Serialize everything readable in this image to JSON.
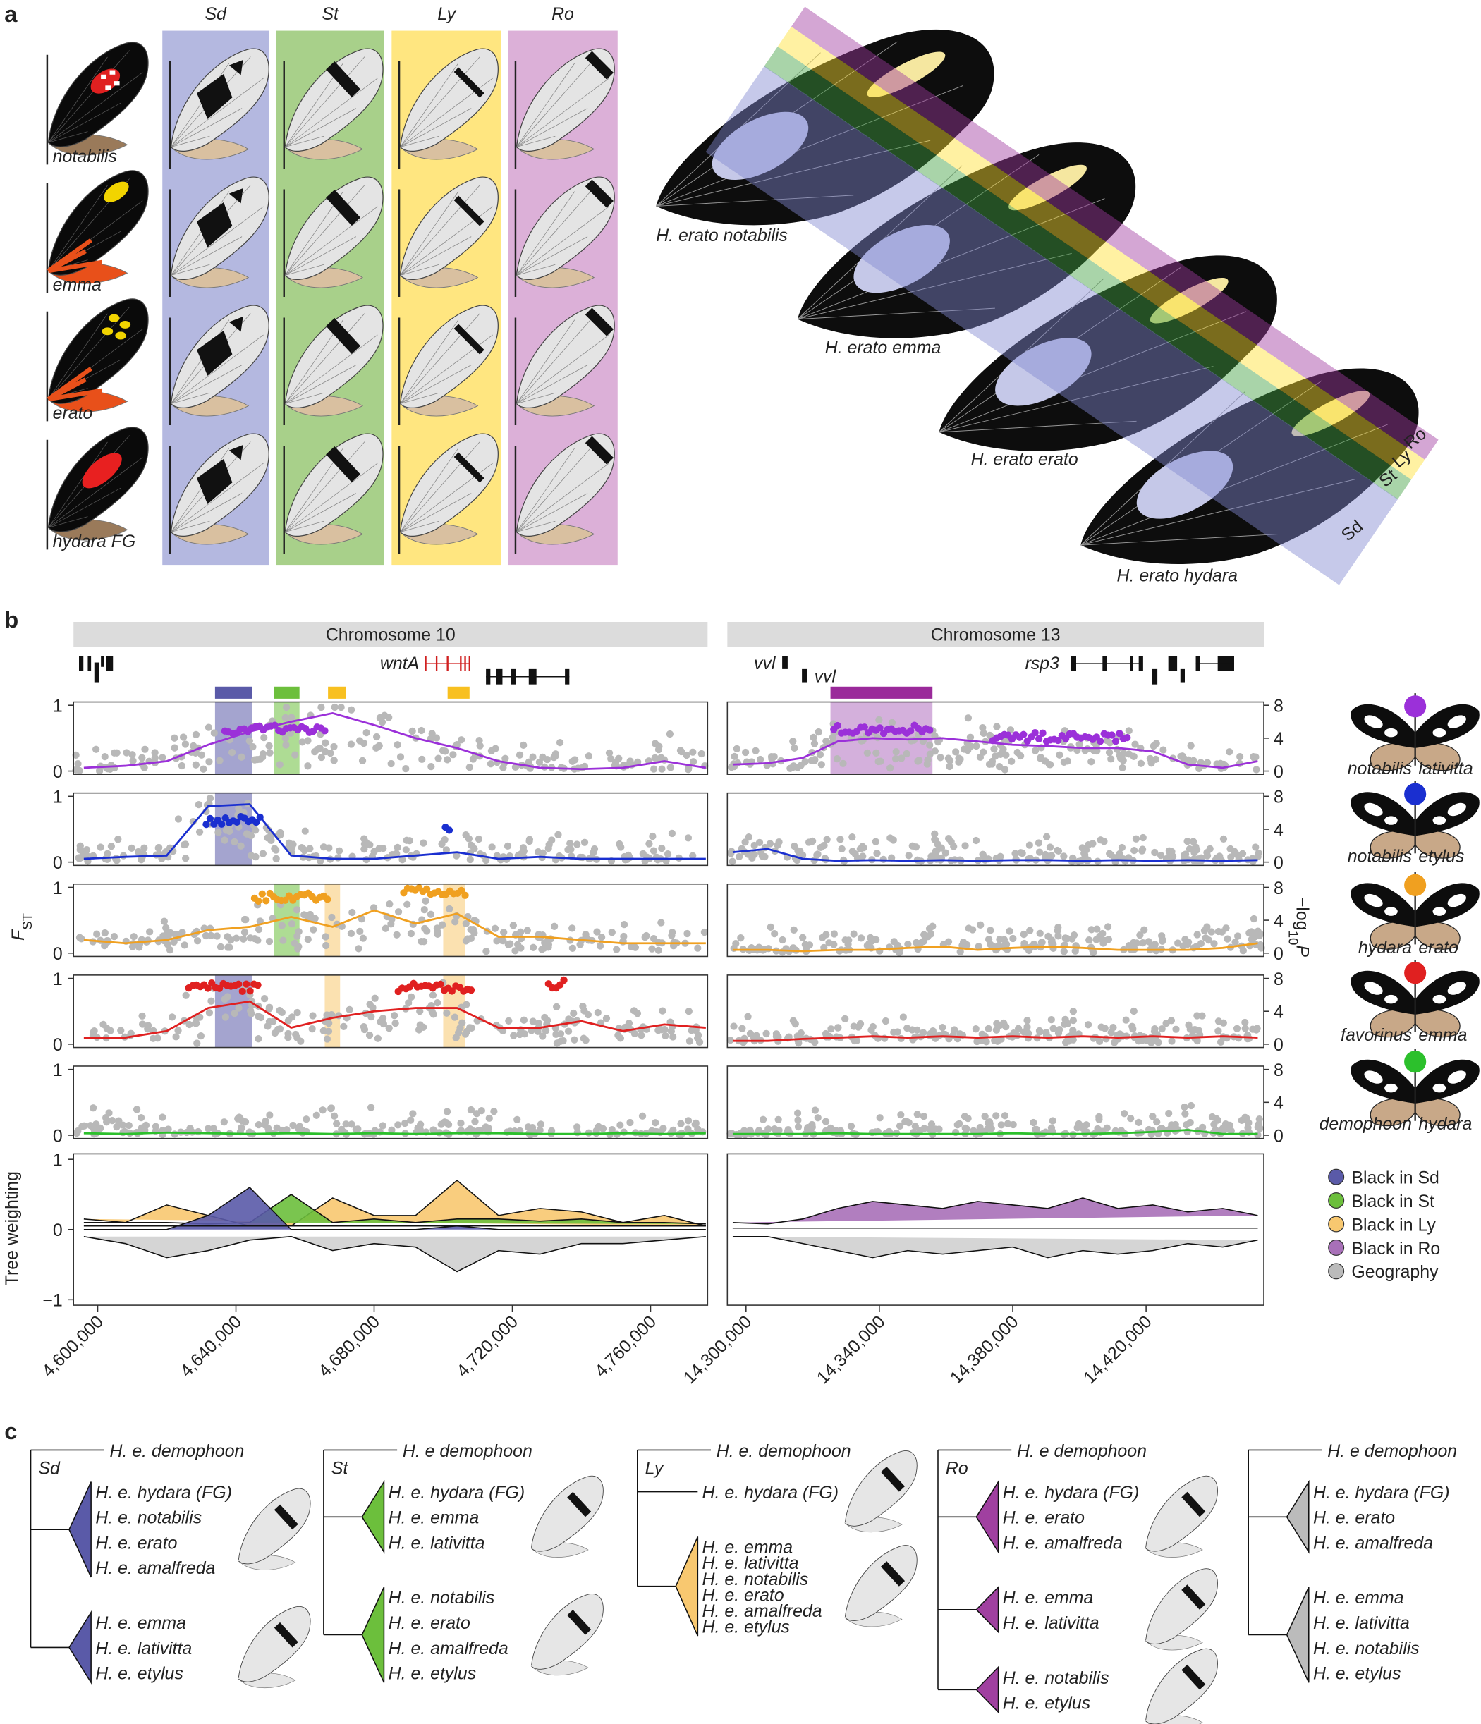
{
  "panel_labels": [
    "a",
    "b",
    "c"
  ],
  "panel_a": {
    "columns": [
      "Sd",
      "St",
      "Ly",
      "Ro"
    ],
    "rows": [
      "notabilis",
      "emma",
      "erato",
      "hydara FG"
    ],
    "stack_labels": [
      "H. erato notabilis",
      "H. erato emma",
      "H. erato erato",
      "H. erato hydara"
    ],
    "band_labels": [
      "Ro",
      "Ly",
      "St",
      "Sd"
    ]
  },
  "panel_b": {
    "genes": [
      "wntA",
      "vvl",
      "vvl",
      "rsp3"
    ],
    "fst_label": {
      "main": "F",
      "sub": "ST"
    },
    "p_label": {
      "minus_log": "−log",
      "sub": "10",
      "main": "P"
    },
    "tree_label": "Tree weighting",
    "comparisons": [
      {
        "left": "notabilis",
        "right": "lativitta"
      },
      {
        "left": "notabilis",
        "right": "etylus"
      },
      {
        "left": "hydara",
        "right": "erato"
      },
      {
        "left": "favorinus",
        "right": "emma"
      },
      {
        "left": "demophoon",
        "right": "hydara"
      }
    ],
    "legend": [
      {
        "name": "Black in Sd",
        "color": "#5a5aa8"
      },
      {
        "name": "Black in St",
        "color": "#6cbf3c"
      },
      {
        "name": "Black in Ly",
        "color": "#f8c870"
      },
      {
        "name": "Black in Ro",
        "color": "#a870b8"
      },
      {
        "name": "Geography",
        "color": "#bbbbbb"
      }
    ]
  },
  "chart_data": [
    {
      "type": "line",
      "title": "Chromosome 10",
      "x": [
        4596000,
        4608000,
        4620000,
        4632000,
        4644000,
        4656000,
        4668000,
        4680000,
        4692000,
        4704000,
        4716000,
        4728000,
        4740000,
        4752000,
        4764000,
        4776000
      ],
      "xlim": [
        4593000,
        4776500
      ],
      "xticks": [
        {
          "value": 4600000,
          "label": "4,600,000"
        },
        {
          "value": 4640000,
          "label": "4,640,000"
        },
        {
          "value": 4680000,
          "label": "4,680,000"
        },
        {
          "value": 4720000,
          "label": "4,720,000"
        },
        {
          "value": 4760000,
          "label": "4,760,000"
        }
      ],
      "fst": {
        "ylim": [
          0,
          1
        ],
        "yticks": [
          0,
          1
        ],
        "series": [
          {
            "color": "#9b30d9",
            "values": [
              0.05,
              0.08,
              0.15,
              0.4,
              0.6,
              0.75,
              0.88,
              0.7,
              0.5,
              0.35,
              0.15,
              0.05,
              0.03,
              0.05,
              0.15,
              0.05
            ]
          },
          {
            "color": "#1a2fd0",
            "values": [
              0.05,
              0.08,
              0.1,
              0.85,
              0.88,
              0.1,
              0.05,
              0.05,
              0.1,
              0.15,
              0.05,
              0.08,
              0.05,
              0.05,
              0.05,
              0.05
            ]
          },
          {
            "color": "#f0a020",
            "values": [
              0.2,
              0.15,
              0.2,
              0.35,
              0.4,
              0.55,
              0.4,
              0.65,
              0.45,
              0.6,
              0.25,
              0.25,
              0.2,
              0.15,
              0.15,
              0.15
            ]
          },
          {
            "color": "#e02020",
            "values": [
              0.1,
              0.1,
              0.2,
              0.55,
              0.65,
              0.25,
              0.4,
              0.5,
              0.55,
              0.55,
              0.25,
              0.25,
              0.35,
              0.2,
              0.3,
              0.25
            ]
          },
          {
            "color": "#2cc02c",
            "values": [
              0.03,
              0.02,
              0.04,
              0.03,
              0.02,
              0.03,
              0.02,
              0.03,
              0.02,
              0.03,
              0.03,
              0.02,
              0.02,
              0.03,
              0.02,
              0.03
            ]
          }
        ]
      },
      "tree": {
        "ylim": [
          -1,
          1
        ],
        "yticks": [
          1,
          0,
          {
            "value": -1,
            "label": "−1"
          }
        ],
        "series": [
          {
            "color": "#f8c870",
            "values": [
              0.15,
              0.1,
              0.35,
              0.2,
              0.05,
              0.05,
              0.45,
              0.2,
              0.2,
              0.7,
              0.2,
              0.3,
              0.25,
              0.1,
              0.2,
              0.05
            ]
          },
          {
            "color": "#6cbf3c",
            "values": [
              0.1,
              0.1,
              0.1,
              0.08,
              0.1,
              0.5,
              0.1,
              0.15,
              0.1,
              0.15,
              0.15,
              0.12,
              0.15,
              0.1,
              0.1,
              0.08
            ]
          },
          {
            "color": "#5a5aa8",
            "values": [
              0,
              0,
              0,
              0.2,
              0.6,
              0,
              0,
              0,
              0,
              0.05,
              0,
              0,
              0,
              0,
              0,
              0
            ]
          },
          {
            "color": "#a870b8",
            "values": [
              0.05,
              0.05,
              0.05,
              0.05,
              0.05,
              0.05,
              0.05,
              0.05,
              0.05,
              0.05,
              0.05,
              0.05,
              0.05,
              0.05,
              0.05,
              0.05
            ]
          },
          {
            "color": "#d0d0d0",
            "values": [
              -0.1,
              -0.2,
              -0.4,
              -0.3,
              -0.15,
              -0.1,
              -0.3,
              -0.2,
              -0.25,
              -0.6,
              -0.3,
              -0.35,
              -0.2,
              -0.2,
              -0.15,
              -0.1
            ]
          }
        ]
      }
    },
    {
      "type": "line",
      "title": "Chromosome 13",
      "x": [
        14296000,
        14306500,
        14317000,
        14327500,
        14338000,
        14348500,
        14359000,
        14369500,
        14380000,
        14390500,
        14401000,
        14411500,
        14422000,
        14432500,
        14443000,
        14453500
      ],
      "xlim": [
        14294400,
        14455300
      ],
      "xticks": [
        {
          "value": 14300000,
          "label": "14,300,000"
        },
        {
          "value": 14340000,
          "label": "14,340,000"
        },
        {
          "value": 14380000,
          "label": "14,380,000"
        },
        {
          "value": 14420000,
          "label": "14,420,000"
        }
      ],
      "fst": {
        "ylim": [
          0,
          1
        ],
        "y2lim": [
          0,
          8
        ],
        "y2ticks": [
          0,
          4,
          8
        ],
        "series": [
          {
            "color": "#9b30d9",
            "values": [
              0.1,
              0.12,
              0.2,
              0.45,
              0.5,
              0.48,
              0.5,
              0.45,
              0.4,
              0.38,
              0.35,
              0.35,
              0.3,
              0.1,
              0.05,
              0.15
            ]
          },
          {
            "color": "#1a2fd0",
            "values": [
              0.15,
              0.2,
              0.05,
              0.02,
              0.03,
              0.02,
              0.03,
              0.02,
              0.03,
              0.03,
              0.02,
              0.03,
              0.02,
              0.03,
              0.02,
              0.03
            ]
          },
          {
            "color": "#f0a020",
            "values": [
              0.05,
              0.05,
              0.03,
              0.05,
              0.05,
              0.08,
              0.1,
              0.05,
              0.08,
              0.1,
              0.08,
              0.05,
              0.05,
              0.05,
              0.08,
              0.15
            ]
          },
          {
            "color": "#e02020",
            "values": [
              0.05,
              0.05,
              0.08,
              0.1,
              0.12,
              0.1,
              0.12,
              0.1,
              0.12,
              0.1,
              0.12,
              0.1,
              0.12,
              0.1,
              0.12,
              0.1
            ]
          },
          {
            "color": "#2cc02c",
            "values": [
              0.02,
              0.02,
              0.02,
              0.03,
              0.02,
              0.02,
              0.02,
              0.02,
              0.03,
              0.02,
              0.02,
              0.03,
              0.05,
              0.08,
              0.02,
              0.02
            ]
          }
        ]
      },
      "tree": {
        "ylim": [
          -1,
          1
        ],
        "series": [
          {
            "color": "#f8c870",
            "values": [
              0.02,
              0.02,
              0.02,
              0.02,
              0.02,
              0.02,
              0.02,
              0.02,
              0.02,
              0.02,
              0.02,
              0.02,
              0.02,
              0.02,
              0.02,
              0.02
            ]
          },
          {
            "color": "#6cbf3c",
            "values": [
              0.02,
              0.02,
              0.02,
              0.02,
              0.02,
              0.02,
              0.02,
              0.02,
              0.02,
              0.02,
              0.02,
              0.02,
              0.02,
              0.02,
              0.02,
              0.02
            ]
          },
          {
            "color": "#5a5aa8",
            "values": [
              0.02,
              0.02,
              0.02,
              0.02,
              0.02,
              0.02,
              0.02,
              0.02,
              0.02,
              0.02,
              0.02,
              0.02,
              0.02,
              0.02,
              0.02,
              0.02
            ]
          },
          {
            "color": "#a870b8",
            "values": [
              0.1,
              0.08,
              0.15,
              0.3,
              0.4,
              0.35,
              0.3,
              0.4,
              0.35,
              0.3,
              0.45,
              0.3,
              0.35,
              0.25,
              0.3,
              0.2
            ]
          },
          {
            "color": "#d0d0d0",
            "values": [
              -0.1,
              -0.1,
              -0.2,
              -0.3,
              -0.4,
              -0.3,
              -0.35,
              -0.3,
              -0.25,
              -0.4,
              -0.3,
              -0.35,
              -0.3,
              -0.2,
              -0.25,
              -0.15
            ]
          }
        ]
      }
    }
  ],
  "panel_c": {
    "trees": [
      {
        "locus": "Sd",
        "color": "#5a5aa8",
        "outgroup": "H. e. demophoon",
        "clades": [
          [
            "H. e. hydara (FG)",
            "H. e. notabilis",
            "H. e. erato",
            "H. e. amalfreda"
          ],
          [
            "H. e. emma",
            "H. e. lativitta",
            "H. e. etylus"
          ]
        ]
      },
      {
        "locus": "St",
        "color": "#6cbf3c",
        "outgroup": "H. e demophoon",
        "clades": [
          [
            "H. e. hydara (FG)",
            "H. e. emma",
            "H. e. lativitta"
          ],
          [
            "H. e. notabilis",
            "H. e. erato",
            "H. e. amalfreda",
            "H. e. etylus"
          ]
        ]
      },
      {
        "locus": "Ly",
        "color": "#f8c870",
        "outgroup": "H. e. demophoon",
        "clades": [
          [
            "H. e. hydara (FG)"
          ],
          [
            "H. e. emma",
            "H. e. lativitta",
            "H. e. notabilis",
            "H. e. erato",
            "H. e. amalfreda",
            "H. e. etylus"
          ]
        ]
      },
      {
        "locus": "Ro",
        "color": "#a040a0",
        "outgroup": "H. e demophoon",
        "clades": [
          [
            "H. e. hydara (FG)",
            "H. e. erato",
            "H. e. amalfreda"
          ],
          [
            "H. e. emma",
            "H. e. lativitta"
          ],
          [
            "H. e. notabilis",
            "H. e. etylus"
          ]
        ]
      },
      {
        "color": "#bbbbbb",
        "outgroup": "H. e demophoon",
        "clades": [
          [
            "H. e. hydara (FG)",
            "H. e. erato",
            "H. e. amalfreda"
          ],
          [
            "H. e. emma",
            "H. e. lativitta",
            "H. e. notabilis",
            "H. e. etylus"
          ]
        ]
      }
    ]
  }
}
